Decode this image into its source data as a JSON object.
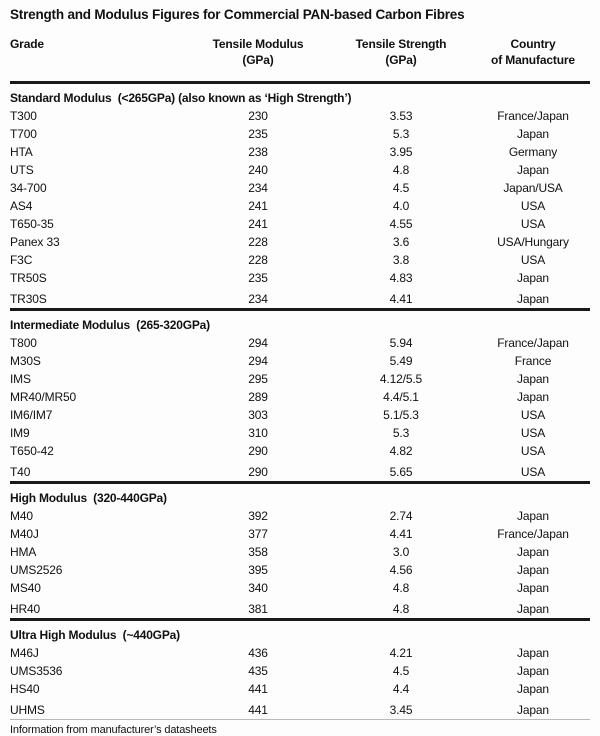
{
  "title": "Strength and Modulus Figures for Commercial PAN-based Carbon Fibres",
  "columns": [
    {
      "label": "Grade",
      "sub": ""
    },
    {
      "label": "Tensile Modulus",
      "sub": "(GPa)"
    },
    {
      "label": "Tensile Strength",
      "sub": "(GPa)"
    },
    {
      "label": "Country",
      "sub": "of Manufacture"
    }
  ],
  "column_keys": [
    "grade",
    "tensile_modulus_gpa",
    "tensile_strength_gpa",
    "country_of_manufacture"
  ],
  "sections": [
    {
      "header": "Standard Modulus  (<265GPa) (also known as ‘High Strength’)",
      "rows": [
        [
          "T300",
          "230",
          "3.53",
          "France/Japan"
        ],
        [
          "T700",
          "235",
          "5.3",
          "Japan"
        ],
        [
          "HTA",
          "238",
          "3.95",
          "Germany"
        ],
        [
          "UTS",
          "240",
          "4.8",
          "Japan"
        ],
        [
          "34-700",
          "234",
          "4.5",
          "Japan/USA"
        ],
        [
          "AS4",
          "241",
          "4.0",
          "USA"
        ],
        [
          "T650-35",
          "241",
          "4.55",
          "USA"
        ],
        [
          "Panex 33",
          "228",
          "3.6",
          "USA/Hungary"
        ],
        [
          "F3C",
          "228",
          "3.8",
          "USA"
        ],
        [
          "TR50S",
          "235",
          "4.83",
          "Japan"
        ],
        [
          "TR30S",
          "234",
          "4.41",
          "Japan"
        ]
      ]
    },
    {
      "header": "Intermediate Modulus  (265-320GPa)",
      "rows": [
        [
          "T800",
          "294",
          "5.94",
          "France/Japan"
        ],
        [
          "M30S",
          "294",
          "5.49",
          "France"
        ],
        [
          "IMS",
          "295",
          "4.12/5.5",
          "Japan"
        ],
        [
          "MR40/MR50",
          "289",
          "4.4/5.1",
          "Japan"
        ],
        [
          "IM6/IM7",
          "303",
          "5.1/5.3",
          "USA"
        ],
        [
          "IM9",
          "310",
          "5.3",
          "USA"
        ],
        [
          "T650-42",
          "290",
          "4.82",
          "USA"
        ],
        [
          "T40",
          "290",
          "5.65",
          "USA"
        ]
      ]
    },
    {
      "header": "High Modulus  (320-440GPa)",
      "rows": [
        [
          "M40",
          "392",
          "2.74",
          "Japan"
        ],
        [
          "M40J",
          "377",
          "4.41",
          "France/Japan"
        ],
        [
          "HMA",
          "358",
          "3.0",
          "Japan"
        ],
        [
          "UMS2526",
          "395",
          "4.56",
          "Japan"
        ],
        [
          "MS40",
          "340",
          "4.8",
          "Japan"
        ],
        [
          "HR40",
          "381",
          "4.8",
          "Japan"
        ]
      ]
    },
    {
      "header": "Ultra High Modulus  (~440GPa)",
      "rows": [
        [
          "M46J",
          "436",
          "4.21",
          "Japan"
        ],
        [
          "UMS3536",
          "435",
          "4.5",
          "Japan"
        ],
        [
          "HS40",
          "441",
          "4.4",
          "Japan"
        ],
        [
          "UHMS",
          "441",
          "3.45",
          "Japan"
        ]
      ]
    }
  ],
  "footer": "Information from manufacturer’s datasheets",
  "colors": {
    "text": "#111111",
    "rule": "#1a1a1a",
    "thin_rule": "#b9b9b9",
    "background": "#fdfdfd"
  }
}
